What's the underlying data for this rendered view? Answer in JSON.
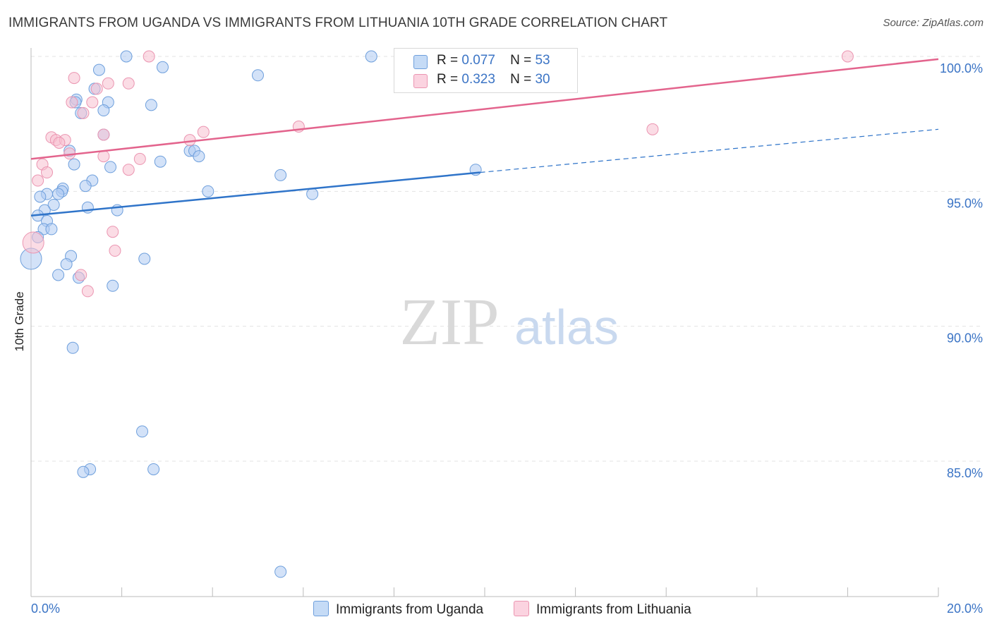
{
  "title": "IMMIGRANTS FROM UGANDA VS IMMIGRANTS FROM LITHUANIA 10TH GRADE CORRELATION CHART",
  "source": "Source: ZipAtlas.com",
  "watermark": {
    "zip": "ZIP",
    "atlas": "atlas"
  },
  "legend": {
    "uganda": {
      "r_label": "R =",
      "r_value": "0.077",
      "n_label": "N =",
      "n_value": "53"
    },
    "lithuania": {
      "r_label": "R =",
      "r_value": "0.323",
      "n_label": "N =",
      "n_value": "30"
    }
  },
  "colors": {
    "uganda_fill": "#aecbf2",
    "uganda_stroke": "#6e9fdc",
    "uganda_line": "#2f74c9",
    "lithuania_fill": "#f7bfd0",
    "lithuania_stroke": "#eb95b1",
    "lithuania_line": "#e3648d",
    "axis_label": "#3b74c5"
  },
  "chart_data": {
    "type": "scatter",
    "title": "IMMIGRANTS FROM UGANDA VS IMMIGRANTS FROM LITHUANIA 10TH GRADE CORRELATION CHART",
    "xlabel": "",
    "ylabel": "10th Grade",
    "xlim": [
      0,
      20
    ],
    "ylim": [
      80.1,
      100.8
    ],
    "x_tick_labels": [
      "0.0%",
      "20.0%"
    ],
    "y_ticks": [
      85,
      90,
      95,
      100
    ],
    "y_tick_labels": [
      "85.0%",
      "90.0%",
      "95.0%",
      "100.0%"
    ],
    "grid": true,
    "legend_position": "bottom",
    "series": [
      {
        "name": "Immigrants from Uganda",
        "r": 0.077,
        "n": 53,
        "points": [
          [
            2.1,
            100.0
          ],
          [
            7.5,
            100.0
          ],
          [
            1.5,
            99.5
          ],
          [
            2.9,
            99.6
          ],
          [
            5.0,
            99.3
          ],
          [
            1.4,
            98.8
          ],
          [
            1.0,
            98.4
          ],
          [
            0.98,
            98.3
          ],
          [
            1.7,
            98.3
          ],
          [
            2.65,
            98.2
          ],
          [
            1.6,
            98.0
          ],
          [
            1.1,
            97.9
          ],
          [
            1.6,
            97.1
          ],
          [
            0.85,
            96.5
          ],
          [
            3.5,
            96.5
          ],
          [
            3.6,
            96.5
          ],
          [
            3.7,
            96.3
          ],
          [
            2.85,
            96.1
          ],
          [
            0.95,
            96.0
          ],
          [
            1.75,
            95.9
          ],
          [
            5.5,
            95.6
          ],
          [
            9.8,
            95.8
          ],
          [
            1.35,
            95.4
          ],
          [
            1.2,
            95.2
          ],
          [
            0.7,
            95.1
          ],
          [
            0.68,
            95.0
          ],
          [
            3.9,
            95.0
          ],
          [
            0.35,
            94.9
          ],
          [
            0.6,
            94.9
          ],
          [
            0.2,
            94.8
          ],
          [
            6.2,
            94.9
          ],
          [
            0.5,
            94.5
          ],
          [
            1.25,
            94.4
          ],
          [
            0.3,
            94.3
          ],
          [
            1.9,
            94.3
          ],
          [
            0.15,
            94.1
          ],
          [
            0.35,
            93.9
          ],
          [
            0.28,
            93.6
          ],
          [
            0.45,
            93.6
          ],
          [
            0.15,
            93.3
          ],
          [
            0.0,
            92.5
          ],
          [
            0.88,
            92.6
          ],
          [
            2.5,
            92.5
          ],
          [
            0.78,
            92.3
          ],
          [
            0.6,
            91.9
          ],
          [
            1.05,
            91.8
          ],
          [
            1.8,
            91.5
          ],
          [
            0.92,
            89.2
          ],
          [
            2.45,
            86.1
          ],
          [
            1.3,
            84.7
          ],
          [
            2.7,
            84.7
          ],
          [
            1.15,
            84.6
          ],
          [
            5.5,
            80.9
          ]
        ],
        "trend": {
          "x": [
            0,
            9.9
          ],
          "y": [
            94.1,
            95.7
          ]
        },
        "trend_extension": {
          "x": [
            9.9,
            20
          ],
          "y": [
            95.7,
            97.3
          ]
        }
      },
      {
        "name": "Immigrants from Lithuania",
        "r": 0.323,
        "n": 30,
        "points": [
          [
            2.6,
            100.0
          ],
          [
            18.0,
            100.0
          ],
          [
            0.95,
            99.2
          ],
          [
            1.7,
            99.0
          ],
          [
            2.15,
            99.0
          ],
          [
            1.45,
            98.8
          ],
          [
            0.9,
            98.3
          ],
          [
            1.35,
            98.3
          ],
          [
            1.15,
            97.9
          ],
          [
            5.9,
            97.4
          ],
          [
            13.7,
            97.3
          ],
          [
            3.8,
            97.2
          ],
          [
            1.6,
            97.1
          ],
          [
            0.45,
            97.0
          ],
          [
            0.55,
            96.9
          ],
          [
            0.75,
            96.9
          ],
          [
            3.5,
            96.9
          ],
          [
            0.62,
            96.8
          ],
          [
            0.85,
            96.4
          ],
          [
            1.6,
            96.3
          ],
          [
            2.4,
            96.2
          ],
          [
            0.25,
            96.0
          ],
          [
            2.15,
            95.8
          ],
          [
            0.35,
            95.7
          ],
          [
            0.15,
            95.4
          ],
          [
            1.8,
            93.5
          ],
          [
            0.05,
            93.1
          ],
          [
            1.85,
            92.8
          ],
          [
            1.1,
            91.9
          ],
          [
            1.25,
            91.3
          ]
        ],
        "trend": {
          "x": [
            0,
            20
          ],
          "y": [
            96.2,
            99.9
          ]
        }
      }
    ]
  }
}
